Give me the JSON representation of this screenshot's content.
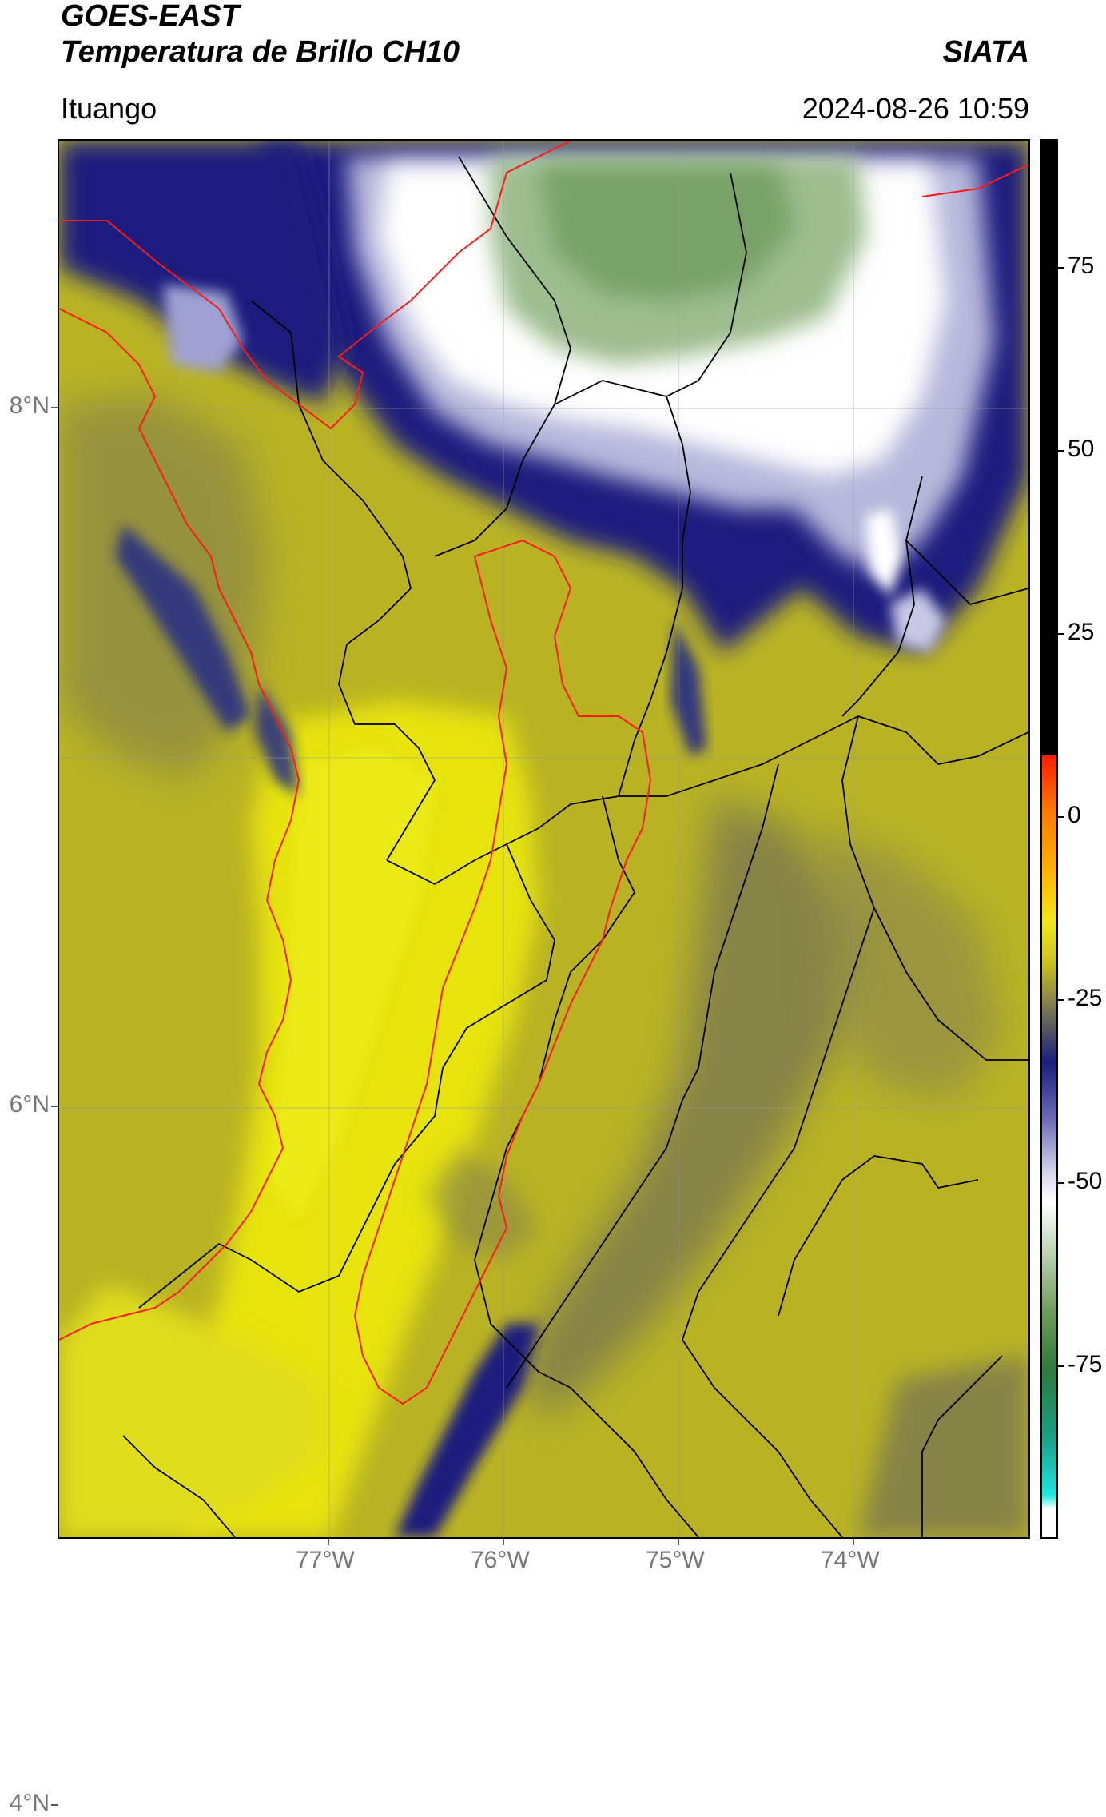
{
  "header": {
    "title_line1": "GOES-EAST",
    "title_line2": "Temperatura de Brillo CH10",
    "agency": "SIATA",
    "region": "Ituango",
    "datetime": "2024-08-26 10:59"
  },
  "map": {
    "lat_ticks": [
      {
        "value": 8,
        "label": "8°N"
      },
      {
        "value": 6,
        "label": "6°N"
      },
      {
        "value": 4,
        "label": "4°N"
      }
    ],
    "lon_ticks": [
      {
        "value": -77,
        "label": "77°W"
      },
      {
        "value": -76,
        "label": "76°W"
      },
      {
        "value": -75,
        "label": "75°W"
      },
      {
        "value": -74,
        "label": "74°W"
      }
    ],
    "colors": {
      "yellow_bright": "#e6e310",
      "yellow_olive": "#b9b324",
      "olive_gray": "#7e7b4e",
      "navy": "#1a1f7e",
      "light_purple": "#c8c8e6",
      "white": "#ffffff",
      "green": "#6c9a5a",
      "border_black": "#000000",
      "basin_red": "#ff0000"
    }
  },
  "colorbar": {
    "tick_labels": [
      {
        "value": 75,
        "label": "75"
      },
      {
        "value": 50,
        "label": "50"
      },
      {
        "value": 25,
        "label": "25"
      },
      {
        "value": 0,
        "label": "0"
      },
      {
        "value": -25,
        "label": "-25"
      },
      {
        "value": -50,
        "label": "-50"
      },
      {
        "value": -75,
        "label": "-75"
      }
    ]
  }
}
